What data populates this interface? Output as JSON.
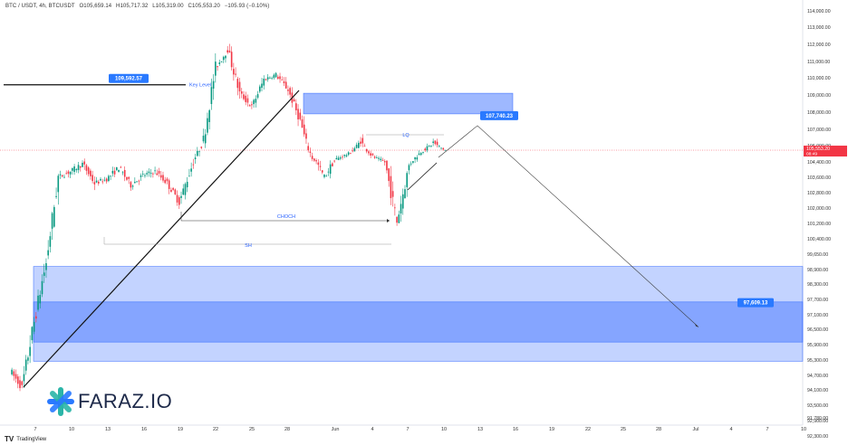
{
  "header": {
    "symbol": "BTC / USDT, 4h, BTCUSDT",
    "ohlc": [
      "O105,659.14",
      "H105,717.32",
      "L105,319.00",
      "C105,553.20",
      "−105.93 (−0.10%)"
    ]
  },
  "branding": {
    "logo_text": "FARAZ.IO",
    "tradingview_label": "TradingView",
    "accent_color": "#2979ff",
    "logo_teal": "#2bb5a8",
    "logo_blue": "#2979ff"
  },
  "chart_data": {
    "type": "candlestick",
    "title": "",
    "y_axis": {
      "position": "right",
      "ticks": [
        "114,000.00",
        "113,000.00",
        "112,000.00",
        "111,000.00",
        "110,000.00",
        "109,000.00",
        "108,000.00",
        "107,000.00",
        "106,000.00",
        "104,400.00",
        "103,600.00",
        "102,800.00",
        "102,000.00",
        "101,200.00",
        "100,400.00",
        "99,650.00",
        "98,900.00",
        "98,300.00",
        "97,700.00",
        "97,100.00",
        "96,500.00",
        "95,900.00",
        "95,300.00",
        "94,700.00",
        "94,100.00",
        "93,500.00",
        "92,900.00",
        "92,300.00",
        "91,780.00"
      ]
    },
    "x_axis": {
      "ticks": [
        "7",
        "10",
        "13",
        "16",
        "19",
        "22",
        "25",
        "28",
        "Jun",
        "4",
        "7",
        "10",
        "13",
        "16",
        "19",
        "22",
        "25",
        "28",
        "Jul",
        "4",
        "7",
        "10"
      ]
    },
    "current_price": {
      "value": "105,553.20",
      "countdown": "08:49",
      "color": "#f23645"
    },
    "price_series": [
      [
        "May 5",
        94900
      ],
      [
        "May 6",
        94200
      ],
      [
        "May 7",
        96800
      ],
      [
        "May 8",
        99200
      ],
      [
        "May 9",
        103600
      ],
      [
        "May 10",
        103900
      ],
      [
        "May 11",
        104300
      ],
      [
        "May 12",
        103300
      ],
      [
        "May 13",
        103500
      ],
      [
        "May 14",
        104100
      ],
      [
        "May 15",
        103200
      ],
      [
        "May 16",
        103700
      ],
      [
        "May 17",
        103900
      ],
      [
        "May 18",
        103300
      ],
      [
        "May 19",
        102300
      ],
      [
        "May 20",
        104100
      ],
      [
        "May 21",
        106400
      ],
      [
        "May 22",
        110600
      ],
      [
        "May 23",
        111700
      ],
      [
        "May 24",
        109100
      ],
      [
        "May 25",
        108300
      ],
      [
        "May 26",
        109900
      ],
      [
        "May 27",
        110200
      ],
      [
        "May 28",
        109300
      ],
      [
        "May 29",
        107500
      ],
      [
        "May 30",
        104800
      ],
      [
        "May 31",
        103600
      ],
      [
        "Jun 1",
        104700
      ],
      [
        "Jun 2",
        105200
      ],
      [
        "Jun 3",
        106300
      ],
      [
        "Jun 4",
        104900
      ],
      [
        "Jun 5",
        104400
      ],
      [
        "Jun 6",
        101300
      ],
      [
        "Jun 7",
        104200
      ],
      [
        "Jun 8",
        105400
      ],
      [
        "Jun 9",
        106200
      ],
      [
        "Jun 10",
        105553
      ]
    ],
    "annotations": {
      "key_level": {
        "price": "109,592.57",
        "label": "Key Level"
      },
      "target_high": {
        "price": "107,740.23"
      },
      "target_low": {
        "price": "97,609.13"
      },
      "choch_label": "CHOCH",
      "sh_label": "SH",
      "lq_label": "LQ"
    },
    "zones": [
      {
        "name": "supply-zone",
        "from": 107900,
        "to": 109100,
        "color": "#2962ff"
      },
      {
        "name": "demand-zone-outer",
        "from": 95250,
        "to": 99050,
        "color": "#2962ff"
      },
      {
        "name": "demand-zone-inner",
        "from": 96000,
        "to": 97600,
        "color": "#2962ff"
      }
    ],
    "colors": {
      "up": "#089981",
      "down": "#f23645"
    },
    "grid": false,
    "legend": "none"
  }
}
